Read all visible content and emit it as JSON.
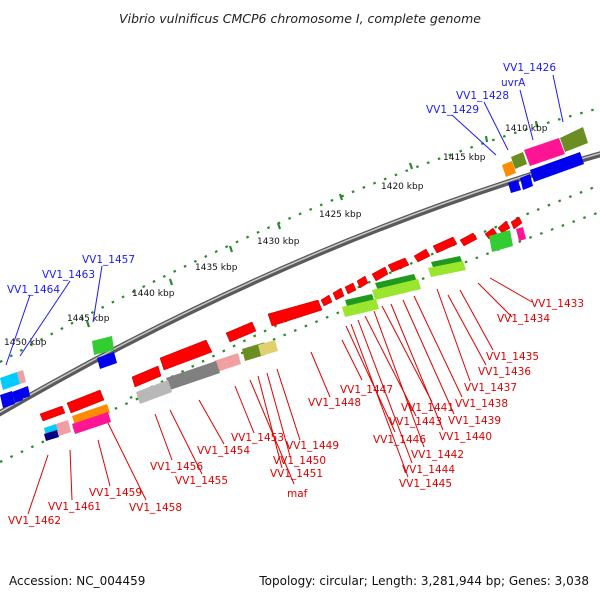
{
  "title": "Vibrio vulnificus CMCP6 chromosome I, complete genome",
  "footer": {
    "accession": "Accession: NC_004459",
    "stats": "Topology: circular; Length: 3,281,944 bp; Genes: 3,038"
  },
  "colors": {
    "label_top": "#1a1aff",
    "label_bottom": "#e00000",
    "backbone": "#7a7a7a",
    "tick": "#2a8a2a",
    "gene_forward": "#ff0000",
    "gene_reverse": "#0000ee"
  },
  "scale_labels": [
    "1410 kbp",
    "1415 kbp",
    "1420 kbp",
    "1425 kbp",
    "1430 kbp",
    "1435 kbp",
    "1440 kbp",
    "1445 kbp",
    "1450 kbp"
  ],
  "top_labels": [
    "VV1_1426",
    "uvrA",
    "VV1_1428",
    "VV1_1429",
    "VV1_1457",
    "VV1_1463",
    "VV1_1464"
  ],
  "bottom_labels": [
    "VV1_1433",
    "VV1_1434",
    "VV1_1435",
    "VV1_1436",
    "VV1_1437",
    "VV1_1438",
    "VV1_1439",
    "VV1_1440",
    "VV1_1441",
    "VV1_1442",
    "VV1_1443",
    "VV1_1444",
    "VV1_1445",
    "VV1_1446",
    "VV1_1447",
    "VV1_1448",
    "VV1_1449",
    "VV1_1450",
    "VV1_1451",
    "maf",
    "VV1_1453",
    "VV1_1454",
    "VV1_1455",
    "VV1_1456",
    "VV1_1458",
    "VV1_1459",
    "VV1_1461",
    "VV1_1462"
  ]
}
